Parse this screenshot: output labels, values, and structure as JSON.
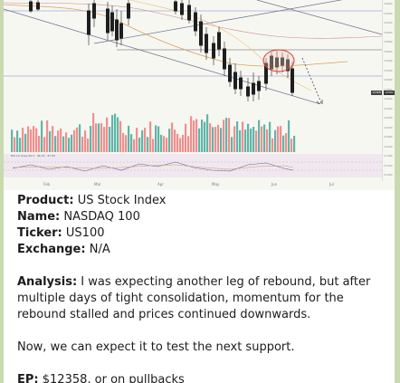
{
  "chart": {
    "indicator_label": "RSI 14 close 50.3 · 46.73 · 47.03",
    "price_tag_left": "12368",
    "price_tag_right": "12362",
    "date_labels": [
      "Feb",
      "Mar",
      "Apr",
      "May",
      "Jun",
      "Jul"
    ],
    "scale_ticks": [
      "14600",
      "14400",
      "14200",
      "14000",
      "13800",
      "13600",
      "13400",
      "13200",
      "13000",
      "12800",
      "12600",
      "12400",
      "12200",
      "12000",
      "11800",
      "11600",
      "11400",
      "11200",
      "11000"
    ],
    "colors": {
      "bull": "#5fb5a8",
      "bear": "#ef8f8f",
      "candle": "#1e1e1e",
      "channel": "#7a7a9a",
      "highlight_circle": "#d33c2d",
      "projection": "#444444"
    }
  },
  "post": {
    "product_label": "Product:",
    "product_value": "US Stock Index",
    "name_label": "Name:",
    "name_value": "NASDAQ 100",
    "ticker_label": "Ticker:",
    "ticker_value": "US100",
    "exchange_label": "Exchange:",
    "exchange_value": "N/A",
    "analysis_label": "Analysis:",
    "analysis_text": "I was expecting another leg of rebound, but after multiple days of tight consolidation, momentum for the rebound stalled and prices continued downwards.",
    "expect_text": "Now, we can expect it to test the next support.",
    "ep_label": "EP:",
    "ep_text": "$12358, or on pullbacks"
  }
}
